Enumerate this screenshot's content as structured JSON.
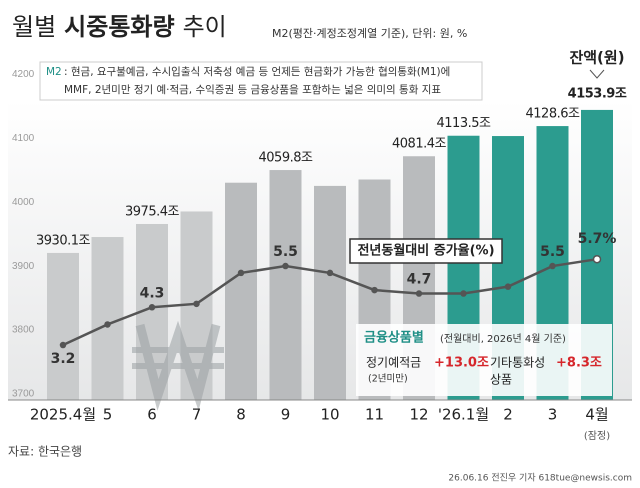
{
  "chart_data": {
    "type": "bar",
    "title": {
      "prefix": "월별",
      "emphasis": "시중통화량",
      "suffix": "추이"
    },
    "subtitle": "M2(평잔·계정조정계열 기준), 단위: 원, %",
    "note": {
      "label": "M2",
      "lines": [
        ": 현금, 요구불예금, 수시입출식 저축성 예금 등 언제든 현금화가 가능한 협의통화(M1)에",
        "MMF, 2년미만 정기 예·적금, 수익증권 등 금융상품을 포함하는 넓은 의미의 통화 지표"
      ]
    },
    "categories": [
      "2025.4월",
      "5",
      "6",
      "7",
      "8",
      "9",
      "10",
      "11",
      "12",
      "'26.1월",
      "2",
      "3",
      "4월"
    ],
    "category_note": "(잠정)",
    "series": [
      {
        "name": "잔액(원)",
        "type": "bar",
        "values": [
          3930.1,
          3955,
          3975.4,
          3995,
          4040,
          4059.8,
          4035,
          4045,
          4081.4,
          4113.5,
          4113,
          4128.6,
          4153.9
        ],
        "value_labels": [
          "3930.1조",
          null,
          "3975.4조",
          null,
          null,
          "4059.8조",
          null,
          null,
          "4081.4조",
          "4113.5조",
          null,
          "4128.6조",
          "4153.9조"
        ],
        "colors": [
          "#c9cbcc",
          "#c9cbcc",
          "#c9cbcc",
          "#c9cbcc",
          "#b9bbbd",
          "#b9bbbd",
          "#b9bbbd",
          "#b9bbbd",
          "#b9bbbd",
          "#2c9c8f",
          "#2c9c8f",
          "#2c9c8f",
          "#2c9c8f"
        ]
      },
      {
        "name": "전년동월대비 증가율(%)",
        "type": "line",
        "axis": "y2",
        "color": "#555555",
        "values": [
          3.2,
          3.8,
          4.3,
          4.4,
          5.3,
          5.5,
          5.3,
          4.8,
          4.7,
          4.7,
          4.9,
          5.5,
          5.7
        ],
        "value_labels": [
          "3.2",
          null,
          "4.3",
          null,
          null,
          "5.5",
          null,
          null,
          "4.7",
          null,
          null,
          "5.5",
          "5.7%"
        ]
      }
    ],
    "ylim": [
      3700,
      4232
    ],
    "yticks": [
      3700,
      3800,
      3900,
      4000,
      4100,
      4200
    ],
    "y2lim": [
      1.6,
      11.5
    ],
    "inset": {
      "title": "금융상품별",
      "title_note": "(전월대비, 2026년 4월 기준)",
      "items": [
        {
          "name": "정기예적금",
          "sub": "(2년미만)",
          "label": "+13.0조"
        },
        {
          "name": "기타통화성",
          "sub": "상품",
          "label": "+8.3조"
        }
      ]
    },
    "source": "자료: 한국은행",
    "credit": "26.06.16 전진우 기자 618tue@newsis.com"
  }
}
